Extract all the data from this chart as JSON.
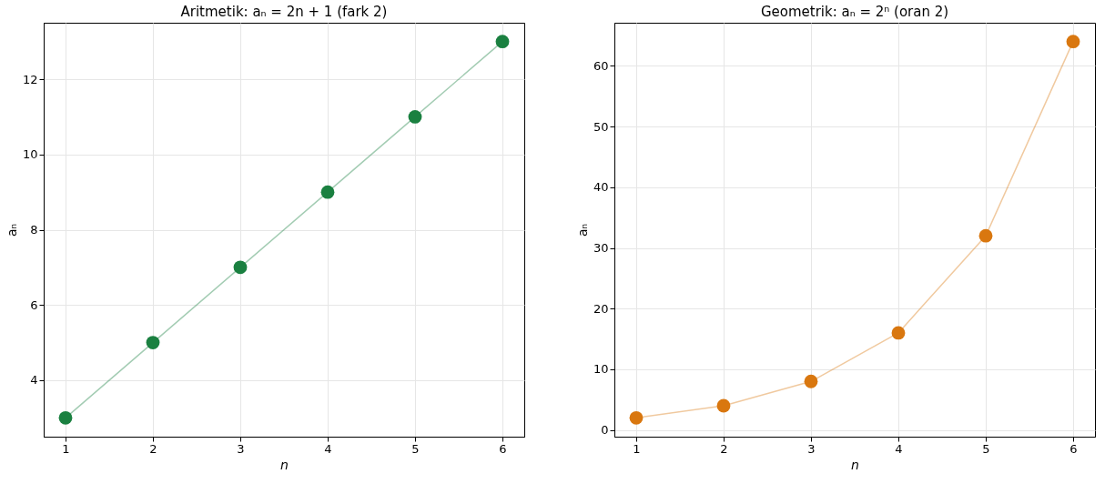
{
  "chart_data": [
    {
      "type": "line",
      "title": "Aritmetik: aₙ = 2n + 1 (fark 2)",
      "xlabel": "n",
      "ylabel": "aₙ",
      "x": [
        1,
        2,
        3,
        4,
        5,
        6
      ],
      "series": [
        {
          "color": "#1a8040",
          "values": [
            3,
            5,
            7,
            9,
            11,
            13
          ]
        }
      ],
      "xlim": [
        0.75,
        6.25
      ],
      "xticks": [
        1,
        2,
        3,
        4,
        5,
        6
      ],
      "ylim": [
        2.5,
        13.5
      ],
      "yticks": [
        4,
        6,
        8,
        10,
        12
      ],
      "grid": true,
      "marker": "circle",
      "line_style": "solid"
    },
    {
      "type": "line",
      "title": "Geometrik: aₙ = 2ⁿ (oran 2)",
      "xlabel": "n",
      "ylabel": "aₙ",
      "x": [
        1,
        2,
        3,
        4,
        5,
        6
      ],
      "series": [
        {
          "color": "#d9770f",
          "values": [
            2,
            4,
            8,
            16,
            32,
            64
          ]
        }
      ],
      "xlim": [
        0.75,
        6.25
      ],
      "xticks": [
        1,
        2,
        3,
        4,
        5,
        6
      ],
      "ylim": [
        -1.1,
        67.1
      ],
      "yticks": [
        0,
        10,
        20,
        30,
        40,
        50,
        60
      ],
      "grid": true,
      "marker": "circle",
      "line_style": "solid"
    }
  ]
}
